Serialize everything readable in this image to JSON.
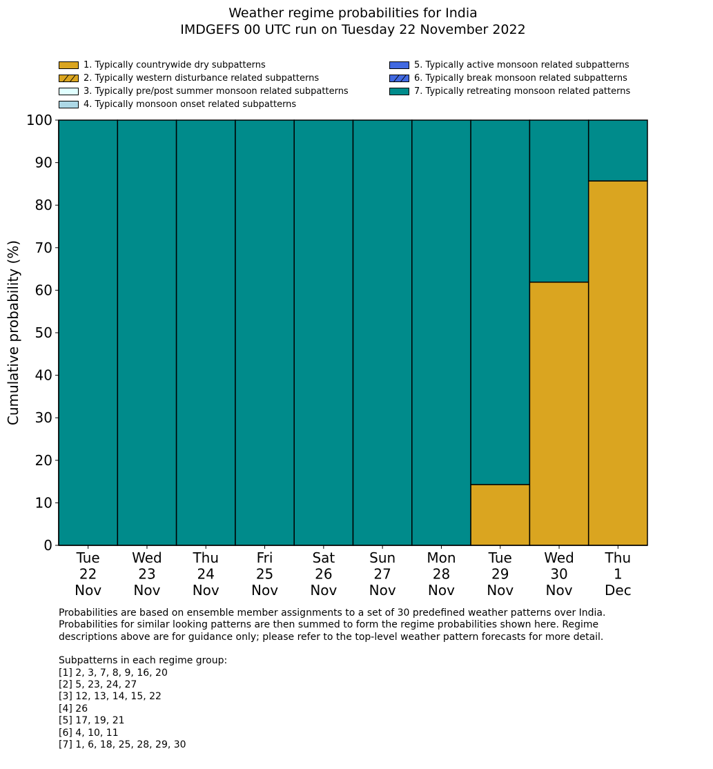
{
  "chart_data": {
    "type": "bar",
    "stacked": true,
    "title": "Weather regime probabilities for India",
    "subtitle": "IMDGEFS 00 UTC run on Tuesday 22 November 2022",
    "xlabel": "",
    "ylabel": "Cumulative probability (%)",
    "ylim": [
      0,
      100
    ],
    "yticks": [
      "0",
      "10",
      "20",
      "30",
      "40",
      "50",
      "60",
      "70",
      "80",
      "90",
      "100"
    ],
    "grid": false,
    "legend_position": "top",
    "categories": [
      [
        "Tue",
        "22",
        "Nov"
      ],
      [
        "Wed",
        "23",
        "Nov"
      ],
      [
        "Thu",
        "24",
        "Nov"
      ],
      [
        "Fri",
        "25",
        "Nov"
      ],
      [
        "Sat",
        "26",
        "Nov"
      ],
      [
        "Sun",
        "27",
        "Nov"
      ],
      [
        "Mon",
        "28",
        "Nov"
      ],
      [
        "Tue",
        "29",
        "Nov"
      ],
      [
        "Wed",
        "30",
        "Nov"
      ],
      [
        "Thu",
        "1",
        "Dec"
      ]
    ],
    "series": [
      {
        "name": "1. Typically countrywide dry subpatterns",
        "color": "#DAA520",
        "hatch": false,
        "values": [
          0,
          0,
          0,
          0,
          0,
          0,
          0,
          14.3,
          61.9,
          85.7
        ]
      },
      {
        "name": "2. Typically western disturbance related subpatterns",
        "color": "#DAA520",
        "hatch": true,
        "values": [
          0,
          0,
          0,
          0,
          0,
          0,
          0,
          0,
          0,
          0
        ]
      },
      {
        "name": "3. Typically pre/post summer monsoon related subpatterns",
        "color": "#E0FFFF",
        "hatch": false,
        "values": [
          0,
          0,
          0,
          0,
          0,
          0,
          0,
          0,
          0,
          0
        ]
      },
      {
        "name": "4. Typically monsoon onset related subpatterns",
        "color": "#ADD8E6",
        "hatch": false,
        "values": [
          0,
          0,
          0,
          0,
          0,
          0,
          0,
          0,
          0,
          0
        ]
      },
      {
        "name": "5. Typically active monsoon related subpatterns",
        "color": "#4169E1",
        "hatch": false,
        "values": [
          0,
          0,
          0,
          0,
          0,
          0,
          0,
          0,
          0,
          0
        ]
      },
      {
        "name": "6. Typically break monsoon related subpatterns",
        "color": "#4169E1",
        "hatch": true,
        "values": [
          0,
          0,
          0,
          0,
          0,
          0,
          0,
          0,
          0,
          0
        ]
      },
      {
        "name": "7. Typically retreating monsoon related patterns",
        "color": "#008B8B",
        "hatch": false,
        "values": [
          100,
          100,
          100,
          100,
          100,
          100,
          100,
          85.7,
          38.1,
          14.3
        ]
      }
    ]
  },
  "notes": {
    "lines": [
      "Probabilities are based on ensemble member assignments to a set of 30 predefined weather patterns over India.",
      "Probabilities for similar looking patterns are then summed to form the regime probabilities shown here. Regime",
      "descriptions above are for guidance only; please refer to the top-level weather pattern forecasts for more detail."
    ],
    "subpatterns_heading": "Subpatterns in each regime group:",
    "subpatterns": [
      "[1] 2, 3, 7, 8, 9, 16, 20",
      "[2] 5, 23, 24, 27",
      "[3] 12, 13, 14, 15, 22",
      "[4] 26",
      "[5] 17, 19, 21",
      "[6] 4, 10, 11",
      "[7] 1, 6, 18, 25, 28, 29, 30"
    ]
  }
}
